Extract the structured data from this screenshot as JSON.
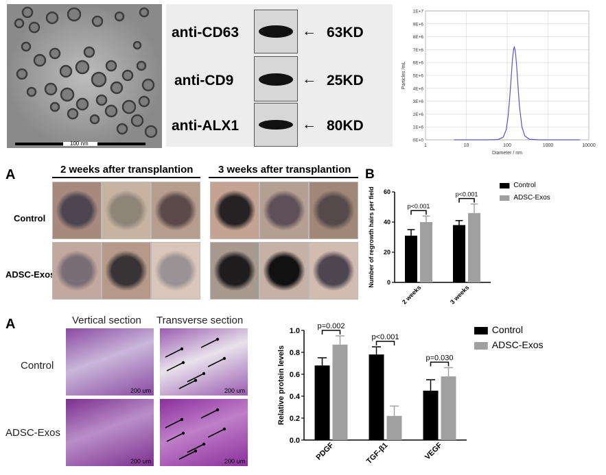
{
  "tem": {
    "scale_label": "100 nm"
  },
  "western_blot": {
    "rows": [
      {
        "antibody": "anti-CD63",
        "size": "63KD"
      },
      {
        "antibody": "anti-CD9",
        "size": "25KD"
      },
      {
        "antibody": "anti-ALX1",
        "size": "80KD"
      }
    ]
  },
  "photo_panel": {
    "letter": "A",
    "header_left": "2 weeks after transplantion",
    "header_right": "3 weeks after transplantion",
    "row_labels": [
      "Control",
      "ADSC-Exos"
    ]
  },
  "histo_panel": {
    "letter": "A",
    "col_labels": [
      "Vertical section",
      "Transverse section"
    ],
    "row_labels": [
      "Control",
      "ADSC-Exos"
    ],
    "scale_label": "200 um"
  },
  "colors": {
    "control": "#000000",
    "treated": "#a0a0a0",
    "curve": "#5a4fcf"
  },
  "chart_data": [
    {
      "type": "line",
      "title": "",
      "xlabel": "Diameter / nm",
      "ylabel": "Particles /mL",
      "x_scale": "log",
      "xlim": [
        1,
        10000
      ],
      "ylim": [
        0,
        10000000
      ],
      "x_tick_labels": [
        "1",
        "10",
        "100",
        "1000",
        "10000"
      ],
      "y_tick_labels": [
        "0E+0",
        "1E+6",
        "2E+6",
        "3E+6",
        "4E+6",
        "5E+6",
        "6E+6",
        "7E+6",
        "8E+6",
        "9E+6",
        "1E+7"
      ],
      "grid": true,
      "series": [
        {
          "x": [
            5,
            30,
            60,
            80,
            95,
            105,
            115,
            125,
            135,
            145,
            150,
            160,
            170,
            185,
            200,
            230,
            270,
            350,
            600,
            6000
          ],
          "y": [
            0,
            0,
            20000,
            200000,
            800000,
            1800000,
            3200000,
            4800000,
            6300000,
            7100000,
            7200000,
            6800000,
            5800000,
            4100000,
            2600000,
            1000000,
            300000,
            50000,
            0,
            0
          ]
        }
      ]
    },
    {
      "type": "bar",
      "letter": "B",
      "ylabel": "Number of regrowth hairs per field",
      "categories": [
        "2 weeks",
        "3 weeks"
      ],
      "ylim": [
        0,
        60
      ],
      "y_tick_labels": [
        "0",
        "20",
        "40",
        "60"
      ],
      "legend": "top-right",
      "series": [
        {
          "name": "Control",
          "values": [
            31,
            38
          ],
          "errors": [
            4,
            3
          ]
        },
        {
          "name": "ADSC-Exos",
          "values": [
            40,
            46
          ],
          "errors": [
            4,
            6
          ]
        }
      ],
      "annotations": [
        "p<0.001",
        "p<0.001"
      ]
    },
    {
      "type": "bar",
      "ylabel": "Relative protein levels",
      "categories": [
        "PDGF",
        "TGF-β1",
        "VEGF"
      ],
      "ylim": [
        0,
        1.0
      ],
      "y_tick_labels": [
        "0.0",
        "0.2",
        "0.4",
        "0.6",
        "0.8",
        "1.0"
      ],
      "legend": "top-right",
      "series": [
        {
          "name": "Control",
          "values": [
            0.68,
            0.78,
            0.45
          ],
          "errors": [
            0.07,
            0.07,
            0.1
          ]
        },
        {
          "name": "ADSC-Exos",
          "values": [
            0.87,
            0.22,
            0.58
          ],
          "errors": [
            0.08,
            0.09,
            0.08
          ]
        }
      ],
      "annotations": [
        "p=0.002",
        "p<0.001",
        "p=0.030"
      ]
    }
  ]
}
